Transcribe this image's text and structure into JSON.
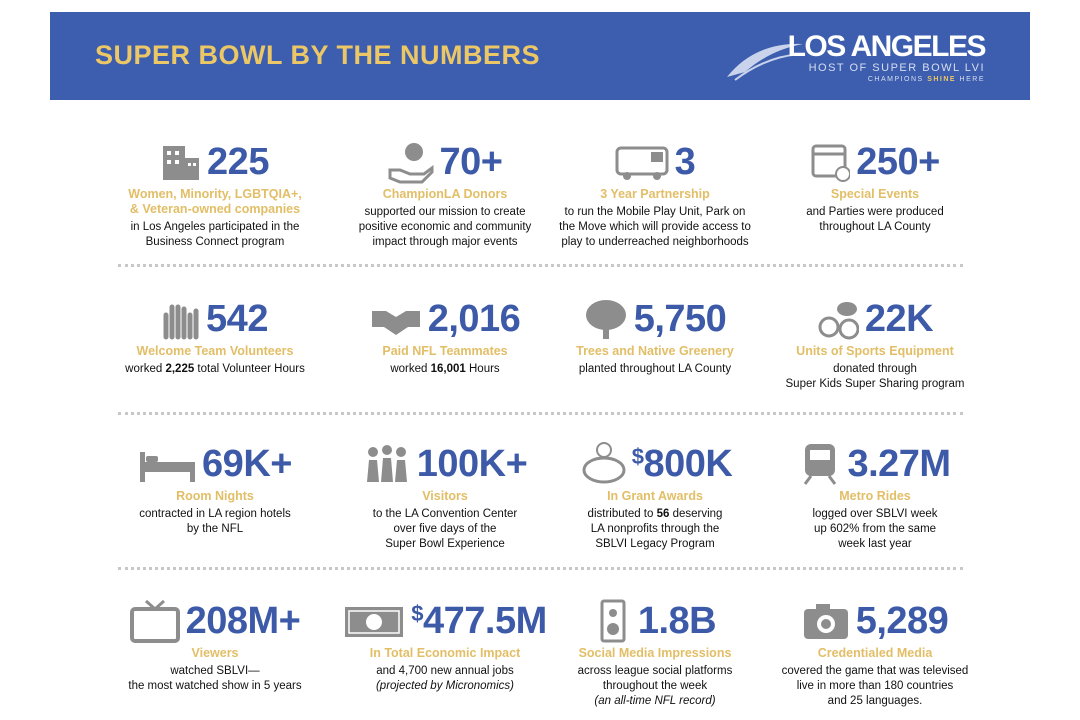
{
  "header": {
    "title": "SUPER BOWL BY THE NUMBERS",
    "logo": {
      "name": "LOS ANGELES",
      "host": "HOST OF SUPER BOWL LVI",
      "tagline": [
        "CHAMPIONS",
        "SHINE",
        "HERE"
      ]
    }
  },
  "stats": [
    {
      "prefix": null,
      "value": "225",
      "label": [
        "Women, Minority, LGBTQIA+,",
        "& Veteran-owned companies"
      ],
      "description": [
        [
          "in Los Angeles participated in the"
        ],
        [
          "Business Connect program"
        ]
      ]
    },
    {
      "prefix": null,
      "value": "70+",
      "label": [
        "ChampionLA Donors"
      ],
      "description": [
        [
          "supported our mission to create"
        ],
        [
          "positive economic and community"
        ],
        [
          "impact through major events"
        ]
      ]
    },
    {
      "prefix": null,
      "value": "3",
      "label": [
        "3 Year Partnership"
      ],
      "description": [
        [
          "to run the Mobile Play Unit, Park on"
        ],
        [
          "the Move which will provide access to"
        ],
        [
          "play to underreached neighborhoods"
        ]
      ]
    },
    {
      "prefix": null,
      "value": "250+",
      "label": [
        "Special Events"
      ],
      "description": [
        [
          "and Parties were produced"
        ],
        [
          "throughout LA County"
        ]
      ]
    },
    {
      "prefix": null,
      "value": "542",
      "label": [
        "Welcome Team Volunteers"
      ],
      "description": [
        [
          "worked ",
          {
            "text": "2,225",
            "bold": true
          },
          " total Volunteer Hours"
        ]
      ]
    },
    {
      "prefix": null,
      "value": "2,016",
      "label": [
        "Paid NFL Teammates"
      ],
      "description": [
        [
          "worked ",
          {
            "text": "16,001",
            "bold": true
          },
          " Hours"
        ]
      ]
    },
    {
      "prefix": null,
      "value": "5,750",
      "label": [
        "Trees and Native Greenery"
      ],
      "description": [
        [
          "planted throughout LA County"
        ]
      ]
    },
    {
      "prefix": null,
      "value": "22K",
      "label": [
        "Units of Sports Equipment"
      ],
      "description": [
        [
          "donated through"
        ],
        [
          "Super Kids Super Sharing program"
        ]
      ]
    },
    {
      "prefix": null,
      "value": "69K+",
      "label": [
        "Room Nights"
      ],
      "description": [
        [
          "contracted in LA region hotels"
        ],
        [
          "by the NFL"
        ]
      ]
    },
    {
      "prefix": null,
      "value": "100K+",
      "label": [
        "Visitors"
      ],
      "description": [
        [
          "to the LA Convention Center"
        ],
        [
          "over five days of the"
        ],
        [
          "Super Bowl Experience"
        ]
      ]
    },
    {
      "prefix": "$",
      "value": "800K",
      "label": [
        "In Grant Awards"
      ],
      "description": [
        [
          "distributed to ",
          {
            "text": "56",
            "bold": true
          },
          " deserving"
        ],
        [
          "LA nonprofits through the"
        ],
        [
          "SBLVI Legacy Program"
        ]
      ]
    },
    {
      "prefix": null,
      "value": "3.27M",
      "label": [
        "Metro Rides"
      ],
      "description": [
        [
          "logged over SBLVI week"
        ],
        [
          "up 602% from the same"
        ],
        [
          "week last year"
        ]
      ]
    },
    {
      "prefix": null,
      "value": "208M+",
      "label": [
        "Viewers"
      ],
      "description": [
        [
          "watched SBLVI—"
        ],
        [
          "the most watched show in 5 years"
        ]
      ]
    },
    {
      "prefix": "$",
      "value": "477.5M",
      "label": [
        "In Total Economic Impact"
      ],
      "description": [
        [
          "and 4,700 new annual jobs"
        ],
        [
          {
            "text": "(projected by Micronomics)",
            "italic": true
          }
        ]
      ]
    },
    {
      "prefix": null,
      "value": "1.8B",
      "label": [
        "Social Media Impressions"
      ],
      "description": [
        [
          "across league social platforms"
        ],
        [
          "throughout the week"
        ],
        [
          {
            "text": "(an all-time NFL record)",
            "italic": true
          }
        ]
      ]
    },
    {
      "prefix": null,
      "value": "5,289",
      "label": [
        "Credentialed Media"
      ],
      "description": [
        [
          "covered the game that was televised"
        ],
        [
          "live in more than 180 countries"
        ],
        [
          "and 25 languages."
        ]
      ]
    }
  ]
}
